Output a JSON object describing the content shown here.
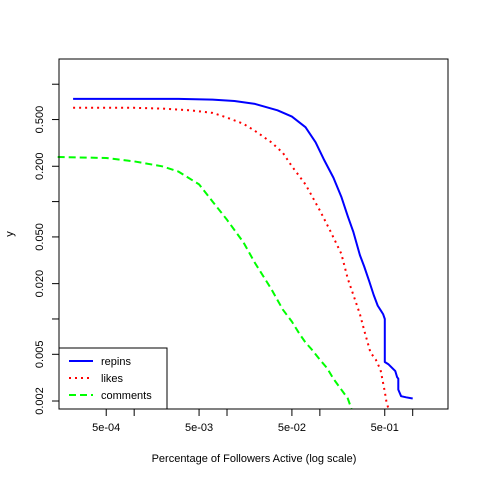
{
  "chart_data": {
    "type": "line",
    "title": "",
    "xlabel": "Percentage of Followers Active (log scale)",
    "ylabel": "y",
    "xscale": "log",
    "yscale": "log",
    "xlim": [
      0.000155,
      2.4
    ],
    "ylim": [
      0.00171,
      1.64
    ],
    "grid": false,
    "legend_position": "bottom-left",
    "x_ticks": [
      0.0005,
      0.001,
      0.005,
      0.01,
      0.05,
      0.1,
      0.5,
      1
    ],
    "x_tick_labels": [
      "5e-04",
      "",
      "5e-03",
      "",
      "5e-02",
      "",
      "5e-01",
      ""
    ],
    "y_ticks": [
      0.002,
      0.005,
      0.01,
      0.02,
      0.05,
      0.1,
      0.2,
      0.5,
      1
    ],
    "y_tick_labels": [
      "0.002",
      "0.005",
      "",
      "0.020",
      "0.050",
      "",
      "0.200",
      "0.500",
      ""
    ],
    "series": [
      {
        "name": "repins",
        "color": "#0000ff",
        "style": "solid",
        "x": [
          0.00022,
          0.001,
          0.003,
          0.007,
          0.012,
          0.02,
          0.035,
          0.05,
          0.07,
          0.09,
          0.11,
          0.14,
          0.17,
          0.2,
          0.23,
          0.27,
          0.3,
          0.34,
          0.38,
          0.42,
          0.48,
          0.5,
          0.5,
          0.55,
          0.65,
          0.68,
          0.7,
          0.7,
          0.75,
          0.85,
          1.0
        ],
        "y": [
          0.75,
          0.75,
          0.75,
          0.74,
          0.72,
          0.68,
          0.6,
          0.53,
          0.43,
          0.32,
          0.23,
          0.16,
          0.11,
          0.075,
          0.055,
          0.035,
          0.028,
          0.021,
          0.016,
          0.013,
          0.011,
          0.01,
          0.0043,
          0.0041,
          0.0036,
          0.0032,
          0.0031,
          0.0025,
          0.0022,
          0.00215,
          0.0021
        ]
      },
      {
        "name": "likes",
        "color": "#ff0000",
        "style": "dotted",
        "x": [
          0.00022,
          0.001,
          0.002,
          0.004,
          0.007,
          0.01,
          0.015,
          0.02,
          0.03,
          0.04,
          0.05,
          0.07,
          0.1,
          0.13,
          0.17,
          0.2,
          0.23,
          0.27,
          0.3,
          0.35,
          0.4,
          0.45,
          0.5,
          0.52,
          0.55
        ],
        "y": [
          0.63,
          0.63,
          0.62,
          0.6,
          0.57,
          0.52,
          0.46,
          0.4,
          0.32,
          0.26,
          0.2,
          0.14,
          0.084,
          0.056,
          0.036,
          0.022,
          0.016,
          0.011,
          0.008,
          0.0052,
          0.0045,
          0.0037,
          0.0024,
          0.002,
          0.0017
        ]
      },
      {
        "name": "comments",
        "color": "#00ff00",
        "style": "dashed",
        "x": [
          0.00015,
          0.0005,
          0.001,
          0.002,
          0.003,
          0.005,
          0.007,
          0.01,
          0.015,
          0.02,
          0.03,
          0.04,
          0.05,
          0.06,
          0.07,
          0.08,
          0.1,
          0.12,
          0.14,
          0.17,
          0.2,
          0.22
        ],
        "y": [
          0.24,
          0.235,
          0.22,
          0.2,
          0.18,
          0.14,
          0.1,
          0.07,
          0.045,
          0.03,
          0.018,
          0.012,
          0.0095,
          0.0075,
          0.0063,
          0.0056,
          0.0045,
          0.0038,
          0.0031,
          0.0025,
          0.0021,
          0.0017
        ]
      }
    ]
  }
}
